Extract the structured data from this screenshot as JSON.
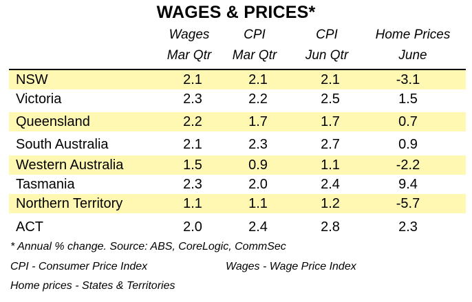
{
  "chart_data": {
    "type": "table",
    "title": "WAGES & PRICES*",
    "columns": [
      {
        "line1": "Wages",
        "line2": "Mar Qtr"
      },
      {
        "line1": "CPI",
        "line2": "Mar Qtr"
      },
      {
        "line1": "CPI",
        "line2": "Jun Qtr"
      },
      {
        "line1": "Home Prices",
        "line2": "June"
      }
    ],
    "rows": [
      {
        "label": "NSW",
        "values": [
          "2.1",
          "2.1",
          "2.1",
          "-3.1"
        ]
      },
      {
        "label": "Victoria",
        "values": [
          "2.3",
          "2.2",
          "2.5",
          "1.5"
        ]
      },
      {
        "label": "Queensland",
        "values": [
          "2.2",
          "1.7",
          "1.7",
          "0.7"
        ]
      },
      {
        "label": "South Australia",
        "values": [
          "2.1",
          "2.3",
          "2.7",
          "0.9"
        ]
      },
      {
        "label": "Western Australia",
        "values": [
          "1.5",
          "0.9",
          "1.1",
          "-2.2"
        ]
      },
      {
        "label": "Tasmania",
        "values": [
          "2.3",
          "2.0",
          "2.4",
          "9.4"
        ]
      },
      {
        "label": "Northern Territory",
        "values": [
          "1.1",
          "1.1",
          "1.2",
          "-5.7"
        ]
      },
      {
        "label": "ACT",
        "values": [
          "2.0",
          "2.4",
          "2.8",
          "2.3"
        ]
      }
    ],
    "row_shading_color": "#fff8b3",
    "notes": {
      "line1": "* Annual % change. Source: ABS, CoreLogic, CommSec",
      "line2a": "CPI - Consumer Price Index",
      "line2b": "Wages - Wage Price Index",
      "line3": "Home prices - States & Territories"
    }
  }
}
